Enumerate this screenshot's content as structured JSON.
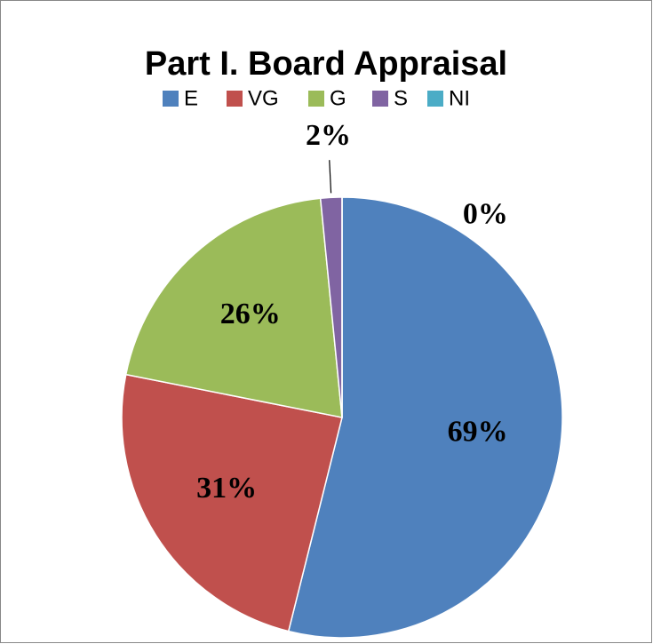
{
  "chart_data": {
    "type": "pie",
    "title": "Part I. Board Appraisal",
    "categories": [
      "E",
      "VG",
      "G",
      "S",
      "NI"
    ],
    "values": [
      69,
      31,
      26,
      2,
      0
    ],
    "value_labels": [
      "69%",
      "31%",
      "26%",
      "2%",
      "0%"
    ],
    "colors": [
      "#4f81bd",
      "#c0504d",
      "#9bbb59",
      "#8064a2",
      "#4bacc6"
    ],
    "legend": "top"
  }
}
